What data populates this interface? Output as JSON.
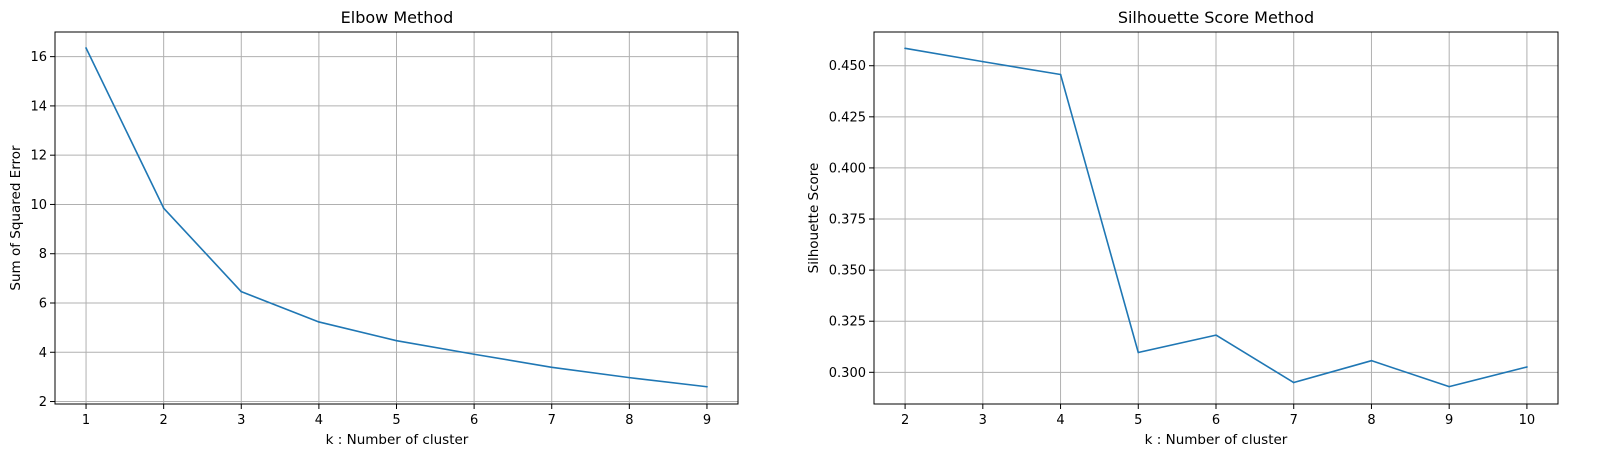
{
  "chart_data": [
    {
      "type": "line",
      "title": "Elbow Method",
      "xlabel": "k : Number of cluster",
      "ylabel": "Sum of Squared Error",
      "x": [
        1,
        2,
        3,
        4,
        5,
        6,
        7,
        8,
        9
      ],
      "series": [
        {
          "values": [
            16.35,
            9.85,
            6.46,
            5.23,
            4.47,
            3.92,
            3.39,
            2.97,
            2.6
          ]
        }
      ],
      "xlim": [
        0.6,
        9.4
      ],
      "ylim": [
        1.9,
        17.0
      ],
      "xticks": [
        1,
        2,
        3,
        4,
        5,
        6,
        7,
        8,
        9
      ],
      "yticks": [
        2,
        4,
        6,
        8,
        10,
        12,
        14,
        16
      ],
      "ytick_decimals": 0,
      "grid": true,
      "color": "#1f77b4"
    },
    {
      "type": "line",
      "title": "Silhouette Score Method",
      "xlabel": "k : Number of cluster",
      "ylabel": "Silhouette Score",
      "x": [
        2,
        3,
        4,
        5,
        6,
        7,
        8,
        9,
        10
      ],
      "series": [
        {
          "values": [
            0.4585,
            0.452,
            0.4457,
            0.3097,
            0.3182,
            0.295,
            0.3057,
            0.293,
            0.3026
          ]
        }
      ],
      "xlim": [
        1.6,
        10.4
      ],
      "ylim": [
        0.2845,
        0.4665
      ],
      "xticks": [
        2,
        3,
        4,
        5,
        6,
        7,
        8,
        9,
        10
      ],
      "yticks": [
        0.3,
        0.325,
        0.35,
        0.375,
        0.4,
        0.425,
        0.45
      ],
      "ytick_decimals": 3,
      "grid": true,
      "color": "#1f77b4"
    }
  ]
}
